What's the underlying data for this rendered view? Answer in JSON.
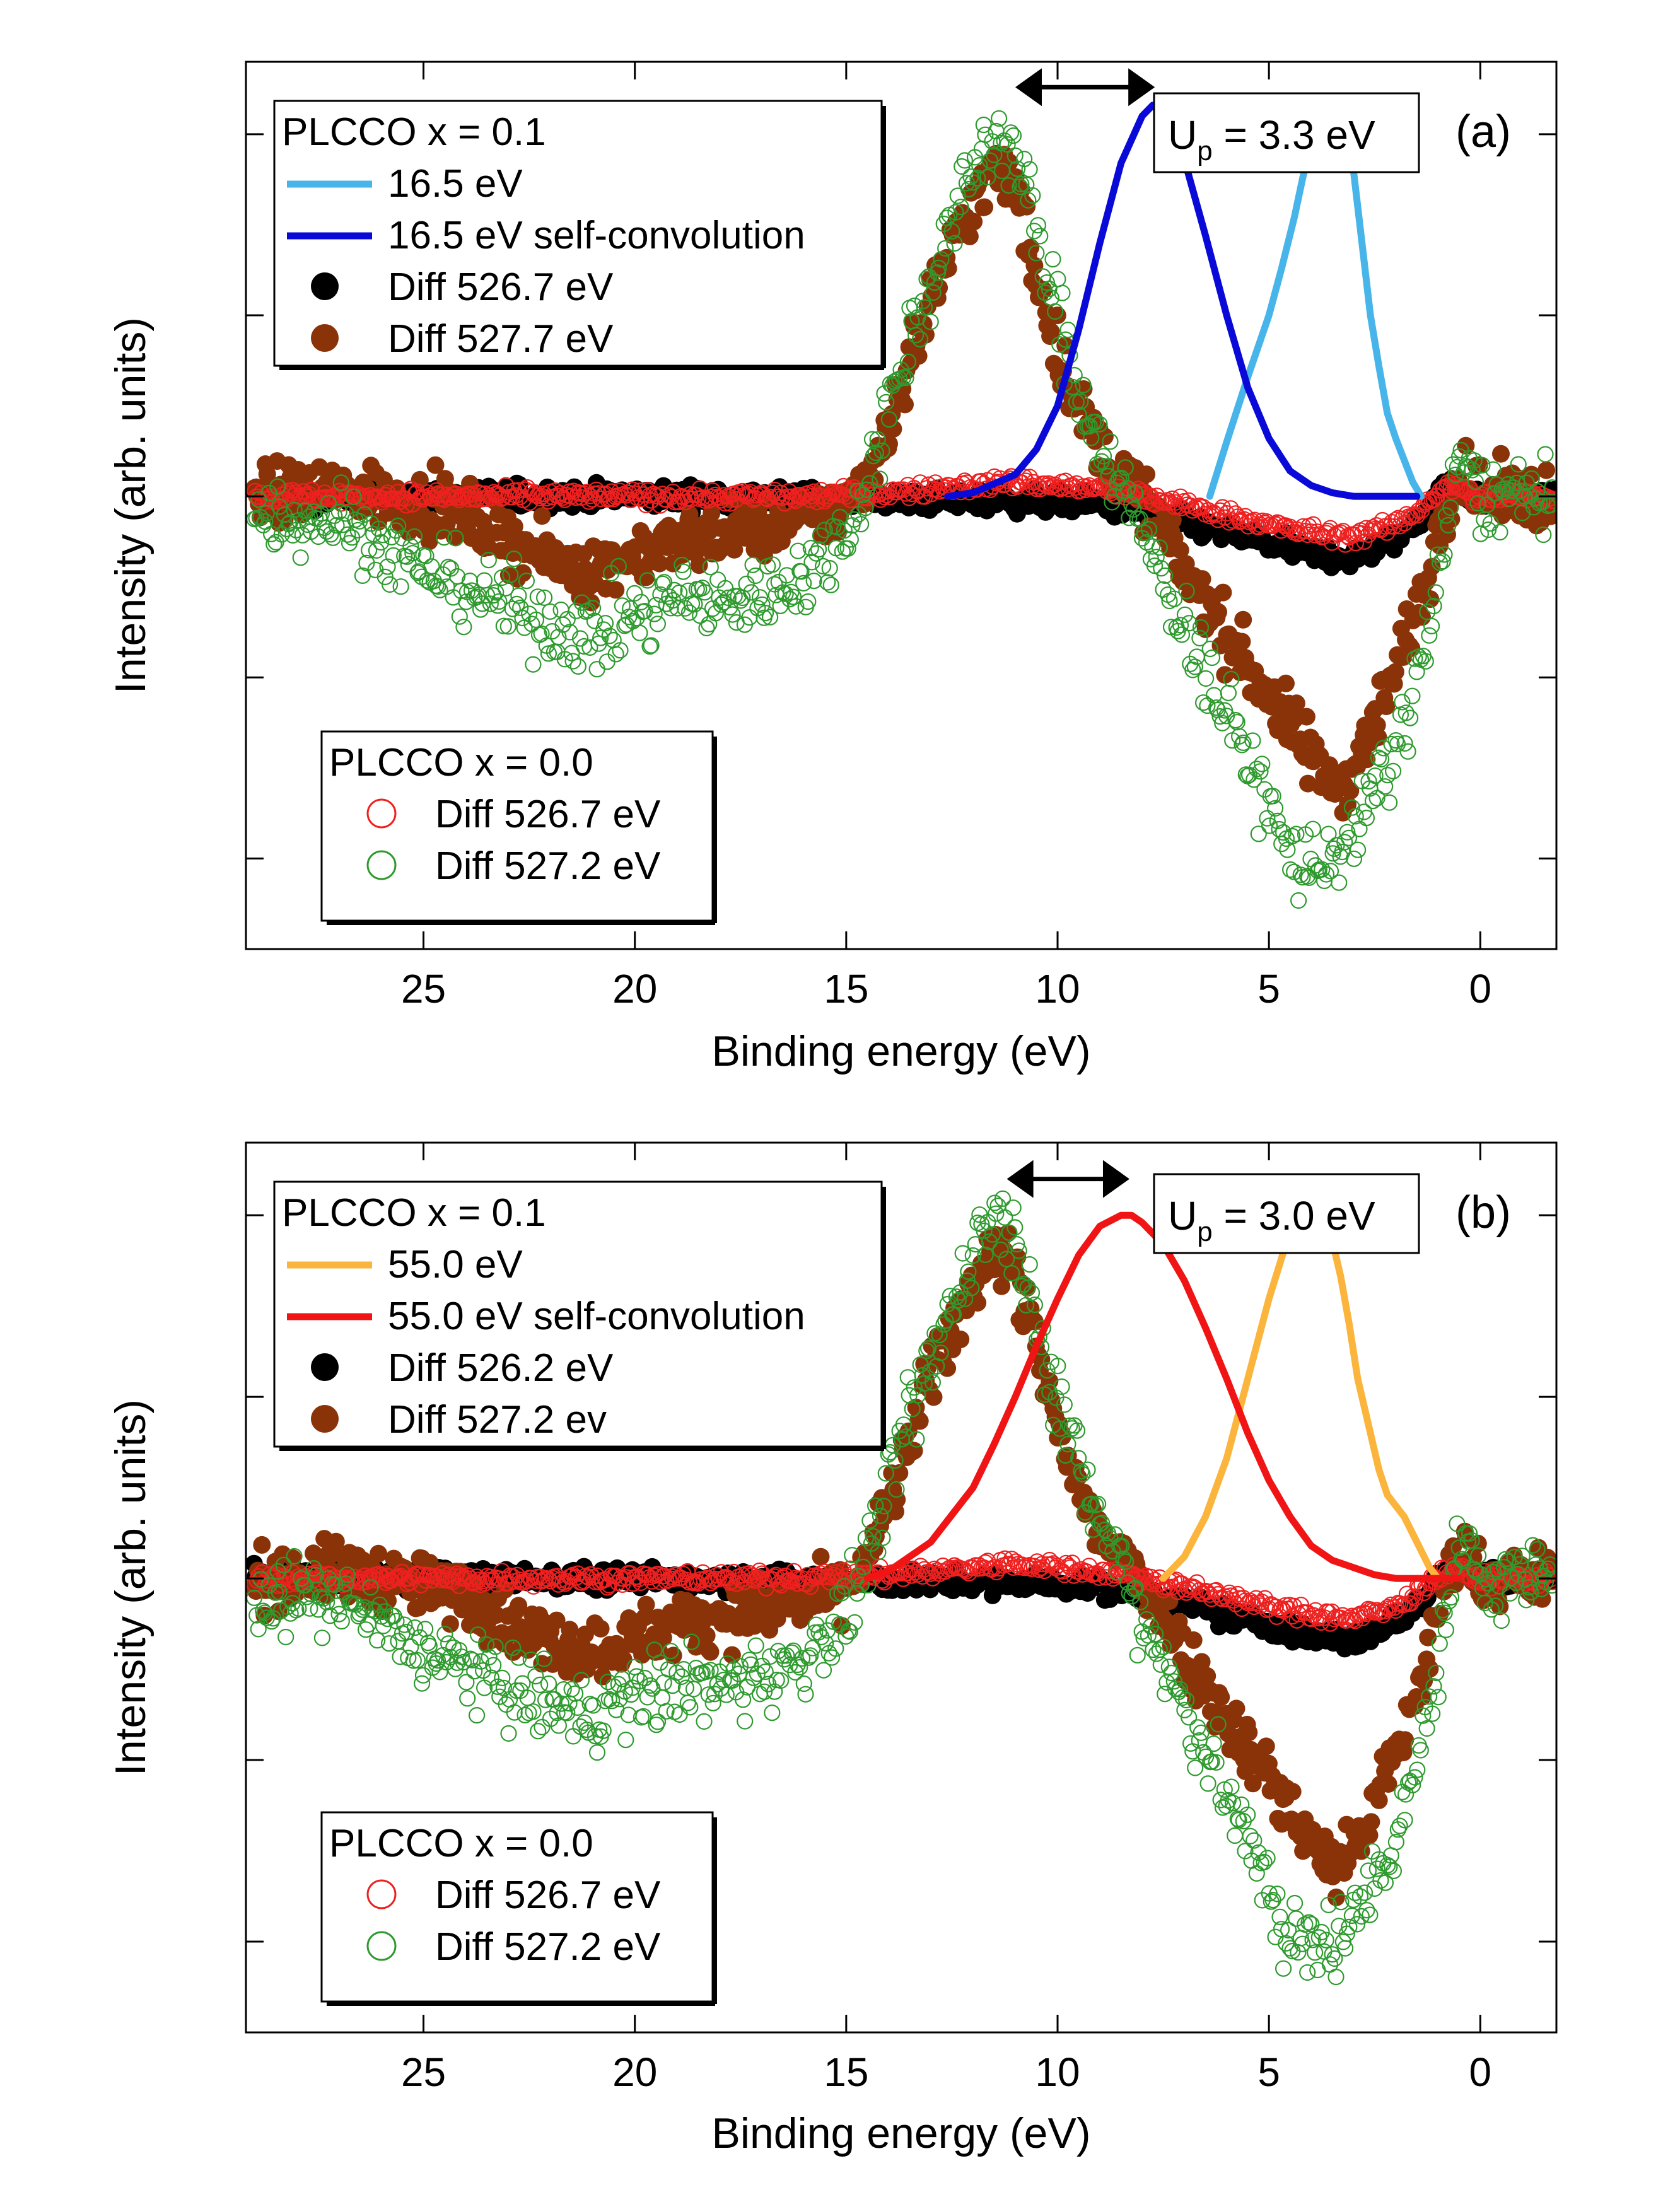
{
  "chart_data": [
    {
      "type": "scatter",
      "panel_label": "(a)",
      "xlabel": "Binding energy (eV)",
      "ylabel": "Intensity (arb. units)",
      "xlim": [
        29.2,
        -1.8
      ],
      "ylim": [
        -1.25,
        1.2
      ],
      "x_reversed": true,
      "xticks": [
        25,
        20,
        15,
        10,
        5,
        0
      ],
      "xtick_labels": [
        "25",
        "20",
        "15",
        "10",
        "5",
        "0"
      ],
      "yticks": [
        -1.0,
        -0.5,
        0.0,
        0.5,
        1.0
      ],
      "y_tick_labels_shown": false,
      "grid": false,
      "annotation": {
        "base": "U",
        "sub": "p",
        "value": " = 3.3 eV"
      },
      "arrow_x": [
        11.0,
        7.7
      ],
      "arrow_y": 1.13,
      "legend_top": {
        "title": "PLCCO x = 0.1",
        "entries": [
          {
            "label": "16.5 eV",
            "symbol": "line",
            "color": "#47b4ea"
          },
          {
            "label": "16.5 eV self-convolution",
            "symbol": "line",
            "color": "#0a0ad8"
          },
          {
            "label": "Diff 526.7 eV",
            "symbol": "filled-circle",
            "color": "#000000"
          },
          {
            "label": "Diff 527.7 eV",
            "symbol": "filled-circle",
            "color": "#8b3308"
          }
        ]
      },
      "legend_bottom": {
        "title": "PLCCO x = 0.0",
        "entries": [
          {
            "label": "Diff 526.7 eV",
            "symbol": "open-circle",
            "color": "#ee2020"
          },
          {
            "label": "Diff 527.2 eV",
            "symbol": "open-circle",
            "color": "#2e9a2e"
          }
        ]
      },
      "series": [
        {
          "name": "16.5 eV",
          "style": "line",
          "color": "#47b4ea",
          "x": [
            6.4,
            6.0,
            5.5,
            5.0,
            4.7,
            4.4,
            4.2,
            4.0,
            3.8,
            3.6,
            3.4,
            3.2,
            3.0,
            2.8,
            2.6,
            2.4,
            2.2,
            2.0,
            1.8,
            1.6,
            1.4
          ],
          "y": [
            0.0,
            0.15,
            0.33,
            0.5,
            0.63,
            0.77,
            0.88,
            0.97,
            1.03,
            1.06,
            1.06,
            1.03,
            0.9,
            0.7,
            0.5,
            0.36,
            0.23,
            0.16,
            0.1,
            0.04,
            0.0
          ]
        },
        {
          "name": "16.5 eV self-convolution",
          "style": "line",
          "color": "#0a0ad8",
          "x": [
            12.6,
            12.0,
            11.0,
            10.5,
            10.0,
            9.5,
            9.0,
            8.5,
            8.0,
            7.75,
            7.5,
            7.0,
            6.5,
            6.0,
            5.5,
            5.0,
            4.5,
            4.0,
            3.5,
            3.0,
            2.5,
            2.0,
            1.5
          ],
          "y": [
            0.0,
            0.01,
            0.06,
            0.13,
            0.25,
            0.46,
            0.7,
            0.92,
            1.05,
            1.08,
            1.05,
            0.93,
            0.72,
            0.5,
            0.3,
            0.16,
            0.07,
            0.03,
            0.01,
            0.0,
            0.0,
            0.0,
            0.0
          ]
        },
        {
          "name": "Diff 526.7 eV",
          "style": "filled",
          "color": "#000000",
          "noise": 0.03,
          "x": [
            29.0,
            26.0,
            22.0,
            18.0,
            15.0,
            12.0,
            9.0,
            6.0,
            4.0,
            3.0,
            2.0,
            1.4,
            0.9,
            0.6,
            0.2,
            -0.5,
            -1.7
          ],
          "y": [
            0.0,
            0.0,
            0.0,
            0.0,
            -0.01,
            -0.01,
            -0.02,
            -0.1,
            -0.16,
            -0.17,
            -0.12,
            -0.06,
            0.02,
            0.04,
            0.0,
            0.0,
            0.0
          ]
        },
        {
          "name": "Diff 527.7 eV",
          "style": "filled",
          "color": "#8b3308",
          "noise": 0.08,
          "x": [
            29.0,
            27.0,
            26.0,
            24.0,
            22.0,
            21.0,
            20.0,
            18.0,
            16.0,
            15.0,
            14.5,
            14.0,
            13.0,
            12.0,
            11.5,
            11.0,
            10.5,
            10.0,
            9.5,
            9.0,
            8.0,
            7.0,
            6.0,
            5.0,
            4.0,
            3.5,
            3.0,
            2.5,
            2.0,
            1.6,
            1.2,
            0.9,
            0.6,
            0.3,
            0.0,
            -0.5,
            -1.7
          ],
          "y": [
            0.0,
            0.02,
            0.0,
            -0.05,
            -0.18,
            -0.2,
            -0.16,
            -0.1,
            -0.07,
            -0.02,
            0.05,
            0.2,
            0.55,
            0.82,
            0.9,
            0.85,
            0.62,
            0.4,
            0.25,
            0.12,
            0.0,
            -0.2,
            -0.38,
            -0.55,
            -0.72,
            -0.8,
            -0.75,
            -0.62,
            -0.48,
            -0.35,
            -0.2,
            -0.05,
            0.05,
            0.05,
            0.0,
            0.0,
            0.0
          ]
        },
        {
          "name": "Diff 526.7 eV",
          "style": "open",
          "color": "#ee2020",
          "noise": 0.02,
          "x": [
            29.0,
            24.0,
            20.0,
            16.0,
            14.0,
            12.0,
            11.0,
            10.0,
            9.0,
            8.0,
            6.0,
            5.0,
            4.0,
            3.0,
            2.0,
            1.5,
            1.0,
            0.6,
            0.2,
            -0.5,
            -1.7
          ],
          "y": [
            0.0,
            0.0,
            0.0,
            0.0,
            0.01,
            0.03,
            0.04,
            0.03,
            0.02,
            0.0,
            -0.05,
            -0.08,
            -0.1,
            -0.11,
            -0.08,
            -0.04,
            0.01,
            0.03,
            0.0,
            0.0,
            0.0
          ]
        },
        {
          "name": "Diff 527.2 eV",
          "style": "open",
          "color": "#2e9a2e",
          "noise": 0.1,
          "x": [
            29.0,
            27.0,
            25.0,
            23.0,
            22.0,
            21.0,
            20.0,
            19.0,
            18.0,
            17.0,
            16.0,
            15.0,
            14.5,
            14.0,
            13.0,
            12.0,
            11.5,
            11.0,
            10.5,
            10.0,
            9.5,
            9.0,
            8.5,
            8.0,
            7.0,
            6.0,
            5.0,
            4.5,
            4.0,
            3.0,
            2.0,
            1.5,
            1.0,
            0.7,
            0.3,
            0.0,
            -0.5,
            -1.7
          ],
          "y": [
            -0.05,
            -0.06,
            -0.2,
            -0.3,
            -0.35,
            -0.38,
            -0.33,
            -0.28,
            -0.3,
            -0.27,
            -0.22,
            -0.1,
            0.05,
            0.25,
            0.6,
            0.9,
            1.0,
            0.95,
            0.72,
            0.5,
            0.3,
            0.15,
            0.03,
            -0.1,
            -0.35,
            -0.6,
            -0.85,
            -1.0,
            -1.02,
            -0.95,
            -0.7,
            -0.5,
            -0.25,
            0.0,
            0.1,
            0.0,
            0.0,
            0.0
          ]
        }
      ]
    },
    {
      "type": "scatter",
      "panel_label": "(b)",
      "xlabel": "Binding energy (eV)",
      "ylabel": "Intensity (arb. units)",
      "xlim": [
        29.2,
        -1.8
      ],
      "ylim": [
        -1.25,
        1.2
      ],
      "x_reversed": true,
      "xticks": [
        25,
        20,
        15,
        10,
        5,
        0
      ],
      "xtick_labels": [
        "25",
        "20",
        "15",
        "10",
        "5",
        "0"
      ],
      "yticks": [
        -1.0,
        -0.5,
        0.0,
        0.5,
        1.0
      ],
      "y_tick_labels_shown": false,
      "grid": false,
      "annotation": {
        "base": "U",
        "sub": "p",
        "value": " = 3.0 eV"
      },
      "arrow_x": [
        11.2,
        8.3
      ],
      "arrow_y": 1.1,
      "legend_top": {
        "title": "PLCCO   x = 0.1",
        "entries": [
          {
            "label": "55.0 eV",
            "symbol": "line",
            "color": "#fbb43c"
          },
          {
            "label": "55.0 eV self-convolution",
            "symbol": "line",
            "color": "#f01414"
          },
          {
            "label": "Diff 526.2 eV",
            "symbol": "filled-circle",
            "color": "#000000"
          },
          {
            "label": "Diff 527.2 ev",
            "symbol": "filled-circle",
            "color": "#8b3308"
          }
        ]
      },
      "legend_bottom": {
        "title": "PLCCO x = 0.0",
        "entries": [
          {
            "label": "Diff 526.7 eV",
            "symbol": "open-circle",
            "color": "#ee2020"
          },
          {
            "label": "Diff 527.2 eV",
            "symbol": "open-circle",
            "color": "#2e9a2e"
          }
        ]
      },
      "series": [
        {
          "name": "55.0 eV",
          "style": "line",
          "color": "#fbb43c",
          "x": [
            7.5,
            7.0,
            6.5,
            6.0,
            5.5,
            5.0,
            4.6,
            4.3,
            4.0,
            3.7,
            3.5,
            3.3,
            3.1,
            2.9,
            2.6,
            2.4,
            2.2,
            2.0,
            1.8,
            1.5,
            1.2,
            1.0
          ],
          "y": [
            0.0,
            0.06,
            0.17,
            0.33,
            0.55,
            0.77,
            0.92,
            0.99,
            1.01,
            0.99,
            0.93,
            0.83,
            0.7,
            0.55,
            0.4,
            0.3,
            0.23,
            0.2,
            0.17,
            0.1,
            0.03,
            0.0
          ]
        },
        {
          "name": "55.0 eV self-convolution",
          "style": "line",
          "color": "#f01414",
          "x": [
            14.5,
            14.0,
            13.0,
            12.0,
            11.5,
            11.0,
            10.5,
            10.0,
            9.5,
            9.0,
            8.5,
            8.25,
            8.0,
            7.5,
            7.0,
            6.5,
            6.0,
            5.5,
            5.0,
            4.5,
            4.0,
            3.5,
            3.0,
            2.5,
            2.0,
            1.5,
            1.0,
            0.5
          ],
          "y": [
            0.0,
            0.02,
            0.1,
            0.25,
            0.37,
            0.5,
            0.64,
            0.77,
            0.89,
            0.97,
            1.0,
            1.0,
            0.98,
            0.92,
            0.82,
            0.69,
            0.55,
            0.4,
            0.27,
            0.17,
            0.09,
            0.05,
            0.03,
            0.01,
            0.0,
            0.0,
            0.0,
            0.0
          ]
        },
        {
          "name": "Diff 526.2 eV",
          "style": "filled",
          "color": "#000000",
          "noise": 0.03,
          "x": [
            29.0,
            26.0,
            22.0,
            18.0,
            15.0,
            12.0,
            9.0,
            6.0,
            4.0,
            3.0,
            2.0,
            1.4,
            0.9,
            0.6,
            0.2,
            -0.5,
            -1.7
          ],
          "y": [
            0.0,
            0.0,
            0.0,
            0.0,
            -0.01,
            -0.01,
            -0.02,
            -0.1,
            -0.16,
            -0.17,
            -0.12,
            -0.06,
            0.02,
            0.04,
            0.0,
            0.0,
            0.0
          ]
        },
        {
          "name": "Diff 527.2 ev",
          "style": "filled",
          "color": "#8b3308",
          "noise": 0.08,
          "x": [
            29.0,
            27.0,
            26.0,
            24.0,
            22.0,
            21.0,
            20.0,
            18.0,
            16.0,
            15.0,
            14.5,
            14.0,
            13.0,
            12.0,
            11.5,
            11.0,
            10.5,
            10.0,
            9.5,
            9.0,
            8.0,
            7.0,
            6.0,
            5.0,
            4.0,
            3.5,
            3.0,
            2.5,
            2.0,
            1.6,
            1.2,
            0.9,
            0.6,
            0.3,
            0.0,
            -0.5,
            -1.7
          ],
          "y": [
            0.0,
            0.02,
            0.0,
            -0.05,
            -0.18,
            -0.2,
            -0.16,
            -0.1,
            -0.07,
            -0.02,
            0.05,
            0.2,
            0.55,
            0.82,
            0.9,
            0.85,
            0.62,
            0.4,
            0.25,
            0.12,
            0.0,
            -0.2,
            -0.38,
            -0.55,
            -0.72,
            -0.8,
            -0.75,
            -0.62,
            -0.48,
            -0.35,
            -0.2,
            -0.05,
            0.05,
            0.05,
            0.0,
            0.0,
            0.0
          ]
        },
        {
          "name": "Diff 526.7 eV",
          "style": "open",
          "color": "#ee2020",
          "noise": 0.02,
          "x": [
            29.0,
            24.0,
            20.0,
            16.0,
            14.0,
            12.0,
            11.0,
            10.0,
            9.0,
            8.0,
            6.0,
            5.0,
            4.0,
            3.0,
            2.0,
            1.5,
            1.0,
            0.6,
            0.2,
            -0.5,
            -1.7
          ],
          "y": [
            0.0,
            0.0,
            0.0,
            0.0,
            0.01,
            0.03,
            0.04,
            0.03,
            0.02,
            0.0,
            -0.05,
            -0.08,
            -0.1,
            -0.11,
            -0.08,
            -0.04,
            0.01,
            0.03,
            0.0,
            0.0,
            0.0
          ]
        },
        {
          "name": "Diff 527.2 eV",
          "style": "open",
          "color": "#2e9a2e",
          "noise": 0.1,
          "x": [
            29.0,
            27.0,
            25.0,
            23.0,
            22.0,
            21.0,
            20.0,
            19.0,
            18.0,
            17.0,
            16.0,
            15.0,
            14.5,
            14.0,
            13.0,
            12.0,
            11.5,
            11.0,
            10.5,
            10.0,
            9.5,
            9.0,
            8.5,
            8.0,
            7.0,
            6.0,
            5.0,
            4.5,
            4.0,
            3.0,
            2.0,
            1.5,
            1.0,
            0.7,
            0.3,
            0.0,
            -0.5,
            -1.7
          ],
          "y": [
            -0.05,
            -0.06,
            -0.2,
            -0.3,
            -0.35,
            -0.38,
            -0.33,
            -0.28,
            -0.3,
            -0.27,
            -0.22,
            -0.1,
            0.05,
            0.25,
            0.6,
            0.9,
            1.0,
            0.95,
            0.72,
            0.5,
            0.3,
            0.15,
            0.03,
            -0.1,
            -0.35,
            -0.6,
            -0.85,
            -1.0,
            -1.02,
            -0.95,
            -0.7,
            -0.5,
            -0.25,
            0.0,
            0.1,
            0.0,
            0.0,
            0.0
          ]
        }
      ]
    }
  ]
}
